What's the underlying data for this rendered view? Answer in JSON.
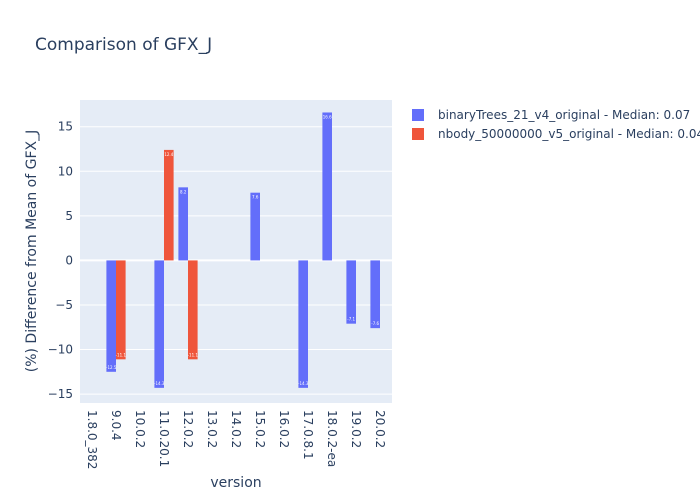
{
  "chart_data": {
    "type": "bar",
    "title": "Comparison of GFX_J",
    "xlabel": "version",
    "ylabel": "(%) Difference from Mean of GFX_J",
    "categories": [
      "1.8.0_382",
      "9.0.4",
      "10.0.2",
      "11.0.20.1",
      "12.0.2",
      "13.0.2",
      "14.0.2",
      "15.0.2",
      "16.0.2",
      "17.0.8.1",
      "18.0.2-ea",
      "19.0.2",
      "20.0.2"
    ],
    "ylim": [
      -16,
      18
    ],
    "yticks": [
      -15,
      -10,
      -5,
      0,
      5,
      10,
      15
    ],
    "grid": true,
    "legend_position": "top-right",
    "series": [
      {
        "name": "binaryTrees_21_v4_original - Median: 0.07",
        "color": "#636efa",
        "values": [
          null,
          -12.5,
          null,
          -14.3,
          8.2,
          null,
          null,
          7.6,
          null,
          -14.3,
          16.6,
          -7.1,
          -7.6
        ],
        "labels": [
          "",
          "-12.5",
          "",
          "-14.3",
          "8.2",
          "",
          "",
          "7.6",
          "",
          "-14.3",
          "16.6",
          "-7.1",
          "-7.6"
        ]
      },
      {
        "name": "nbody_50000000_v5_original - Median: 0.04",
        "color": "#ef553b",
        "values": [
          null,
          -11.1,
          null,
          12.4,
          -11.1,
          null,
          null,
          null,
          null,
          null,
          null,
          null,
          null
        ],
        "labels": [
          "",
          "-11.1",
          "",
          "12.4",
          "-11.1",
          "",
          "",
          "",
          "",
          "",
          "",
          "",
          ""
        ]
      }
    ]
  }
}
